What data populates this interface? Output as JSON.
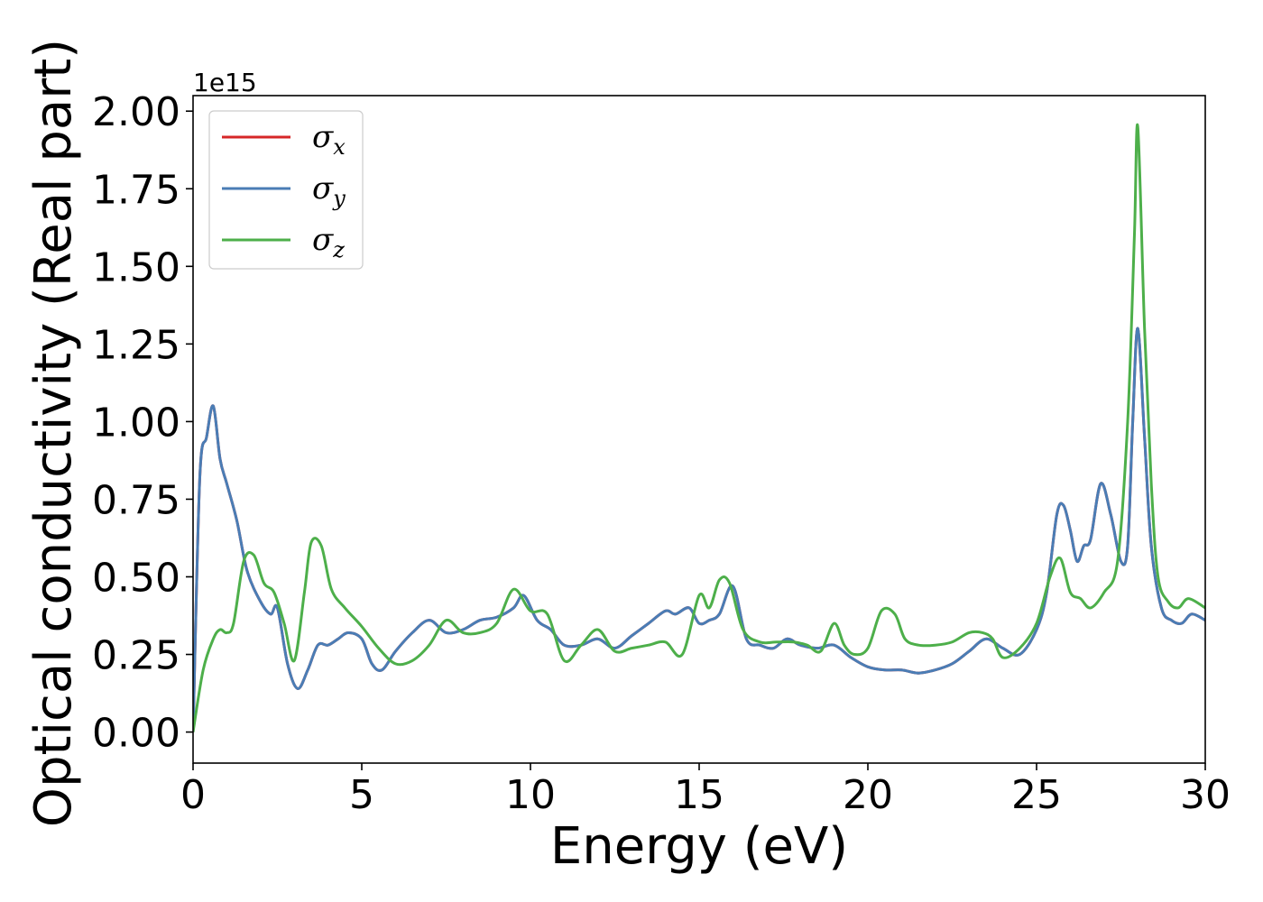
{
  "chart_data": {
    "type": "line",
    "xlabel": "Energy (eV)",
    "ylabel": "Optical conductivity (Real part)",
    "y_offset_label": "1e15",
    "y_scale": 1000000000000000.0,
    "xlim": [
      0,
      30
    ],
    "ylim": [
      -0.1,
      2.05
    ],
    "x_ticks": [
      0,
      5,
      10,
      15,
      20,
      25,
      30
    ],
    "x_tick_labels": [
      "0",
      "5",
      "10",
      "15",
      "20",
      "25",
      "30"
    ],
    "y_ticks": [
      0.0,
      0.25,
      0.5,
      0.75,
      1.0,
      1.25,
      1.5,
      1.75,
      2.0
    ],
    "y_tick_labels": [
      "0.00",
      "0.25",
      "0.50",
      "0.75",
      "1.00",
      "1.25",
      "1.50",
      "1.75",
      "2.00"
    ],
    "grid": false,
    "legend_position": "top-left",
    "series": [
      {
        "name": "σ",
        "subscript": "x",
        "color": "#d62728",
        "x": [
          0,
          0.2,
          0.4,
          0.6,
          0.8,
          1.0,
          1.3,
          1.6,
          2.0,
          2.3,
          2.5,
          2.8,
          3.1,
          3.4,
          3.7,
          4.0,
          4.3,
          4.6,
          5.0,
          5.3,
          5.6,
          6.0,
          6.5,
          7.0,
          7.5,
          8.0,
          8.5,
          9.0,
          9.5,
          9.8,
          10.2,
          10.6,
          11.0,
          11.5,
          12.0,
          12.5,
          13.0,
          13.5,
          14.0,
          14.3,
          14.7,
          15.0,
          15.3,
          15.6,
          16.0,
          16.4,
          16.8,
          17.2,
          17.6,
          18.0,
          18.5,
          19.0,
          19.5,
          20.0,
          20.5,
          21.0,
          21.5,
          22.0,
          22.5,
          23.0,
          23.5,
          24.0,
          24.5,
          25.0,
          25.3,
          25.6,
          25.8,
          26.0,
          26.2,
          26.4,
          26.6,
          26.9,
          27.2,
          27.5,
          27.7,
          27.85,
          28.0,
          28.2,
          28.4,
          28.7,
          29.0,
          29.3,
          29.6,
          30.0
        ],
        "values": [
          0.0,
          0.82,
          0.95,
          1.05,
          0.88,
          0.8,
          0.68,
          0.52,
          0.42,
          0.38,
          0.4,
          0.22,
          0.14,
          0.2,
          0.28,
          0.28,
          0.3,
          0.32,
          0.3,
          0.22,
          0.2,
          0.26,
          0.32,
          0.36,
          0.32,
          0.33,
          0.36,
          0.37,
          0.4,
          0.44,
          0.36,
          0.33,
          0.28,
          0.28,
          0.3,
          0.27,
          0.31,
          0.35,
          0.39,
          0.38,
          0.4,
          0.35,
          0.36,
          0.38,
          0.47,
          0.3,
          0.28,
          0.27,
          0.3,
          0.28,
          0.27,
          0.28,
          0.24,
          0.21,
          0.2,
          0.2,
          0.19,
          0.2,
          0.22,
          0.26,
          0.3,
          0.27,
          0.25,
          0.33,
          0.45,
          0.7,
          0.73,
          0.65,
          0.55,
          0.6,
          0.62,
          0.8,
          0.7,
          0.55,
          0.6,
          1.0,
          1.3,
          0.95,
          0.6,
          0.4,
          0.36,
          0.35,
          0.38,
          0.36
        ]
      },
      {
        "name": "σ",
        "subscript": "y",
        "color": "#4a7db5",
        "x": [
          0,
          0.2,
          0.4,
          0.6,
          0.8,
          1.0,
          1.3,
          1.6,
          2.0,
          2.3,
          2.5,
          2.8,
          3.1,
          3.4,
          3.7,
          4.0,
          4.3,
          4.6,
          5.0,
          5.3,
          5.6,
          6.0,
          6.5,
          7.0,
          7.5,
          8.0,
          8.5,
          9.0,
          9.5,
          9.8,
          10.2,
          10.6,
          11.0,
          11.5,
          12.0,
          12.5,
          13.0,
          13.5,
          14.0,
          14.3,
          14.7,
          15.0,
          15.3,
          15.6,
          16.0,
          16.4,
          16.8,
          17.2,
          17.6,
          18.0,
          18.5,
          19.0,
          19.5,
          20.0,
          20.5,
          21.0,
          21.5,
          22.0,
          22.5,
          23.0,
          23.5,
          24.0,
          24.5,
          25.0,
          25.3,
          25.6,
          25.8,
          26.0,
          26.2,
          26.4,
          26.6,
          26.9,
          27.2,
          27.5,
          27.7,
          27.85,
          28.0,
          28.2,
          28.4,
          28.7,
          29.0,
          29.3,
          29.6,
          30.0
        ],
        "values": [
          0.0,
          0.82,
          0.95,
          1.05,
          0.88,
          0.8,
          0.68,
          0.52,
          0.42,
          0.38,
          0.4,
          0.22,
          0.14,
          0.2,
          0.28,
          0.28,
          0.3,
          0.32,
          0.3,
          0.22,
          0.2,
          0.26,
          0.32,
          0.36,
          0.32,
          0.33,
          0.36,
          0.37,
          0.4,
          0.44,
          0.36,
          0.33,
          0.28,
          0.28,
          0.3,
          0.27,
          0.31,
          0.35,
          0.39,
          0.38,
          0.4,
          0.35,
          0.36,
          0.38,
          0.47,
          0.3,
          0.28,
          0.27,
          0.3,
          0.28,
          0.27,
          0.28,
          0.24,
          0.21,
          0.2,
          0.2,
          0.19,
          0.2,
          0.22,
          0.26,
          0.3,
          0.27,
          0.25,
          0.33,
          0.45,
          0.7,
          0.73,
          0.65,
          0.55,
          0.6,
          0.62,
          0.8,
          0.7,
          0.55,
          0.6,
          1.0,
          1.3,
          0.95,
          0.6,
          0.4,
          0.36,
          0.35,
          0.38,
          0.36
        ]
      },
      {
        "name": "σ",
        "subscript": "z",
        "color": "#4daf4a",
        "x": [
          0,
          0.3,
          0.6,
          0.8,
          1.0,
          1.2,
          1.5,
          1.8,
          2.1,
          2.4,
          2.7,
          3.0,
          3.3,
          3.5,
          3.8,
          4.1,
          4.5,
          5.0,
          5.5,
          6.0,
          6.5,
          7.0,
          7.5,
          8.0,
          8.5,
          9.0,
          9.5,
          10.0,
          10.5,
          11.0,
          11.5,
          12.0,
          12.5,
          13.0,
          13.5,
          14.0,
          14.5,
          15.0,
          15.3,
          15.6,
          15.9,
          16.3,
          16.8,
          17.3,
          17.8,
          18.2,
          18.6,
          19.0,
          19.3,
          19.6,
          20.0,
          20.4,
          20.8,
          21.1,
          21.5,
          22.0,
          22.5,
          23.0,
          23.4,
          23.7,
          24.0,
          24.5,
          25.0,
          25.4,
          25.7,
          26.0,
          26.3,
          26.6,
          27.0,
          27.4,
          27.7,
          27.9,
          28.0,
          28.2,
          28.4,
          28.6,
          28.9,
          29.2,
          29.5,
          30.0
        ],
        "values": [
          0.0,
          0.2,
          0.3,
          0.33,
          0.32,
          0.35,
          0.55,
          0.57,
          0.48,
          0.45,
          0.35,
          0.23,
          0.45,
          0.61,
          0.6,
          0.46,
          0.4,
          0.34,
          0.27,
          0.22,
          0.23,
          0.28,
          0.36,
          0.32,
          0.32,
          0.35,
          0.46,
          0.39,
          0.38,
          0.23,
          0.28,
          0.33,
          0.26,
          0.27,
          0.28,
          0.29,
          0.25,
          0.44,
          0.4,
          0.49,
          0.48,
          0.33,
          0.29,
          0.29,
          0.29,
          0.28,
          0.26,
          0.35,
          0.28,
          0.25,
          0.27,
          0.39,
          0.38,
          0.3,
          0.28,
          0.28,
          0.29,
          0.32,
          0.32,
          0.3,
          0.24,
          0.27,
          0.35,
          0.5,
          0.56,
          0.45,
          0.43,
          0.4,
          0.45,
          0.55,
          1.0,
          1.6,
          1.95,
          1.3,
          0.8,
          0.5,
          0.42,
          0.4,
          0.43,
          0.4
        ]
      }
    ]
  }
}
